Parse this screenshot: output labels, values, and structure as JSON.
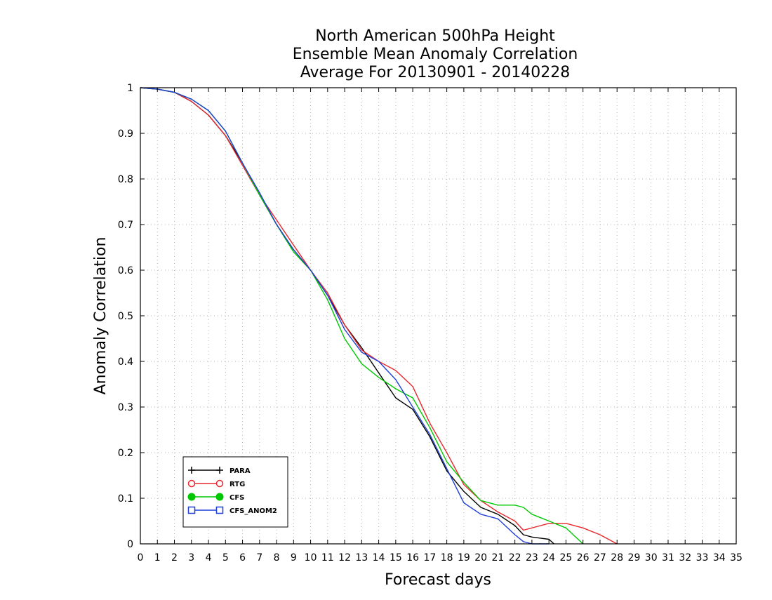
{
  "chart_data": {
    "type": "line",
    "title_lines": [
      "North American 500hPa Height",
      "Ensemble Mean Anomaly Correlation",
      "Average For 20130901 - 20140228"
    ],
    "xlabel": "Forecast days",
    "ylabel": "Anomaly Correlation",
    "xlim": [
      0,
      35
    ],
    "ylim": [
      0,
      1
    ],
    "xticks": [
      0,
      1,
      2,
      3,
      4,
      5,
      6,
      7,
      8,
      9,
      10,
      11,
      12,
      13,
      14,
      15,
      16,
      17,
      18,
      19,
      20,
      21,
      22,
      23,
      24,
      25,
      26,
      27,
      28,
      29,
      30,
      31,
      32,
      33,
      34,
      35
    ],
    "yticks": [
      0,
      0.1,
      0.2,
      0.3,
      0.4,
      0.5,
      0.6,
      0.7,
      0.8,
      0.9,
      1
    ],
    "ytick_labels": [
      "0",
      "0.1",
      "0.2",
      "0.3",
      "0.4",
      "0.5",
      "0.6",
      "0.7",
      "0.8",
      "0.9",
      "1"
    ],
    "grid": true,
    "legend_position": "bottom-left",
    "series": [
      {
        "name": "PARA",
        "color": "#000000",
        "marker": "plus",
        "x": [
          0,
          1,
          2,
          3,
          4,
          5,
          6,
          7,
          8,
          9,
          10,
          11,
          12,
          13,
          14,
          15,
          16,
          17,
          18,
          19,
          20,
          21,
          22,
          22.5,
          23,
          24,
          24.3
        ],
        "y": [
          1.0,
          0.997,
          0.99,
          0.97,
          0.94,
          0.895,
          0.835,
          0.765,
          0.7,
          0.645,
          0.6,
          0.545,
          0.48,
          0.43,
          0.375,
          0.32,
          0.295,
          0.235,
          0.16,
          0.115,
          0.08,
          0.065,
          0.04,
          0.02,
          0.015,
          0.01,
          0.0
        ]
      },
      {
        "name": "RTG",
        "color": "#e8282d",
        "marker": "open-circle",
        "x": [
          0,
          1,
          2,
          3,
          4,
          5,
          6,
          7,
          8,
          9,
          10,
          11,
          12,
          13,
          14,
          15,
          16,
          17,
          18,
          19,
          20,
          21,
          22,
          22.5,
          23,
          24,
          25,
          26,
          27,
          28
        ],
        "y": [
          1.0,
          0.997,
          0.99,
          0.97,
          0.94,
          0.895,
          0.83,
          0.765,
          0.71,
          0.655,
          0.6,
          0.55,
          0.48,
          0.425,
          0.4,
          0.38,
          0.345,
          0.265,
          0.2,
          0.13,
          0.095,
          0.07,
          0.05,
          0.03,
          0.035,
          0.045,
          0.045,
          0.035,
          0.02,
          0.0
        ]
      },
      {
        "name": "CFS",
        "color": "#00c800",
        "marker": "filled-circle",
        "x": [
          0,
          1,
          2,
          3,
          4,
          5,
          6,
          7,
          8,
          9,
          10,
          11,
          12,
          13,
          14,
          15,
          16,
          17,
          18,
          19,
          20,
          21,
          22,
          22.5,
          23,
          24,
          25,
          26
        ],
        "y": [
          1.0,
          0.997,
          0.99,
          0.975,
          0.95,
          0.905,
          0.835,
          0.765,
          0.7,
          0.64,
          0.6,
          0.535,
          0.45,
          0.395,
          0.365,
          0.34,
          0.32,
          0.255,
          0.18,
          0.135,
          0.095,
          0.085,
          0.085,
          0.08,
          0.065,
          0.05,
          0.035,
          0.0
        ]
      },
      {
        "name": "CFS_ANOM2",
        "color": "#1f3fd8",
        "marker": "open-square",
        "x": [
          0,
          1,
          2,
          3,
          4,
          5,
          6,
          7,
          8,
          9,
          10,
          11,
          12,
          13,
          14,
          15,
          16,
          17,
          18,
          19,
          20,
          21,
          22,
          22.5,
          23,
          24
        ],
        "y": [
          1.0,
          0.997,
          0.99,
          0.975,
          0.95,
          0.905,
          0.835,
          0.77,
          0.7,
          0.645,
          0.6,
          0.545,
          0.47,
          0.42,
          0.4,
          0.36,
          0.3,
          0.24,
          0.165,
          0.09,
          0.065,
          0.055,
          0.02,
          0.005,
          0.0,
          0.0
        ]
      }
    ]
  }
}
